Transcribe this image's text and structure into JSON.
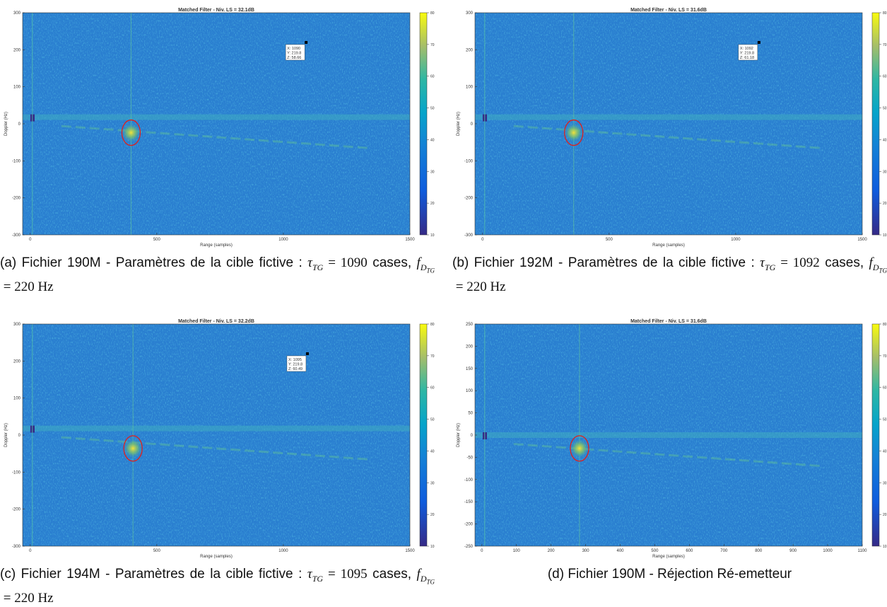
{
  "chart_data": [
    {
      "type": "heatmap",
      "title": "Matched Filter - Niv. LS = 32.1dB",
      "xlabel": "Range (samples)",
      "ylabel": "Doppler (Hz)",
      "xlim": [
        -30,
        1500
      ],
      "ylim": [
        -300,
        300
      ],
      "xticks": [
        0,
        500,
        1000,
        1500
      ],
      "yticks": [
        -300,
        -200,
        -100,
        0,
        100,
        200,
        300
      ],
      "clim": [
        10,
        80
      ],
      "cticks": [
        10,
        20,
        30,
        40,
        50,
        60,
        70,
        80
      ],
      "datatip": {
        "x": 1090,
        "y": 219.8,
        "z": 58.66,
        "labels": [
          "X: 1090",
          "Y: 219.8",
          "Z: 58.66"
        ]
      },
      "caption": [
        {
          "text": "(a) Fichier 190M - Paramètres de la cible fictive : "
        },
        {
          "text": "τ",
          "math": true,
          "sub": "TG"
        },
        {
          "text": " = ",
          "math": true
        },
        {
          "text": "1090",
          "math": true
        },
        {
          "text": " cases, "
        },
        {
          "text": "f",
          "math": true,
          "sub": "D",
          "subsub": "TG"
        },
        {
          "text": " = 220 Hz",
          "math": true
        }
      ]
    },
    {
      "type": "heatmap",
      "title": "Matched Filter - Niv. LS = 31.6dB",
      "xlabel": "Range (samples)",
      "ylabel": "Doppler (Hz)",
      "xlim": [
        -30,
        1500
      ],
      "ylim": [
        -300,
        300
      ],
      "xticks": [
        0,
        500,
        1000,
        1500
      ],
      "yticks": [
        -300,
        -200,
        -100,
        0,
        100,
        200,
        300
      ],
      "clim": [
        10,
        80
      ],
      "cticks": [
        10,
        20,
        30,
        40,
        50,
        60,
        70,
        80
      ],
      "datatip": {
        "x": 1092,
        "y": 219.8,
        "z": 61.18,
        "labels": [
          "X: 1092",
          "Y: 219.8",
          "Z: 61.18"
        ]
      },
      "caption": [
        {
          "text": "(b) Fichier 192M - Paramètres de la cible fictive : "
        },
        {
          "text": "τ",
          "math": true,
          "sub": "TG"
        },
        {
          "text": " = ",
          "math": true
        },
        {
          "text": "1092",
          "math": true
        },
        {
          "text": " cases, "
        },
        {
          "text": "f",
          "math": true,
          "sub": "D",
          "subsub": "TG"
        },
        {
          "text": " = 220 Hz",
          "math": true
        }
      ]
    },
    {
      "type": "heatmap",
      "title": "Matched Filter - Niv. LS = 32.2dB",
      "xlabel": "Range (samples)",
      "ylabel": "Doppler (Hz)",
      "xlim": [
        -30,
        1500
      ],
      "ylim": [
        -300,
        300
      ],
      "xticks": [
        0,
        500,
        1000,
        1500
      ],
      "yticks": [
        -300,
        -200,
        -100,
        0,
        100,
        200,
        300
      ],
      "clim": [
        10,
        80
      ],
      "cticks": [
        10,
        20,
        30,
        40,
        50,
        60,
        70,
        80
      ],
      "datatip": {
        "x": 1095,
        "y": 219.8,
        "z": 60.49,
        "labels": [
          "X: 1095",
          "Y: 219.8",
          "Z: 60.49"
        ]
      },
      "caption": [
        {
          "text": "(c) Fichier 194M - Paramètres de la cible fictive : "
        },
        {
          "text": "τ",
          "math": true,
          "sub": "TG"
        },
        {
          "text": " = ",
          "math": true
        },
        {
          "text": "1095",
          "math": true
        },
        {
          "text": " cases, "
        },
        {
          "text": "f",
          "math": true,
          "sub": "D",
          "subsub": "TG"
        },
        {
          "text": " = 220 Hz",
          "math": true
        }
      ]
    },
    {
      "type": "heatmap",
      "title": "Matched Filter - Niv. LS = 31.6dB",
      "xlabel": "Range (samples)",
      "ylabel": "Doppler (Hz)",
      "xlim": [
        -20,
        1100
      ],
      "ylim": [
        -250,
        250
      ],
      "xticks": [
        0,
        100,
        200,
        300,
        400,
        500,
        600,
        700,
        800,
        900,
        1000,
        1100
      ],
      "yticks": [
        -250,
        -200,
        -150,
        -100,
        -50,
        0,
        50,
        100,
        150,
        200,
        250
      ],
      "clim": [
        10,
        80
      ],
      "cticks": [
        10,
        20,
        30,
        40,
        50,
        60,
        70,
        80
      ],
      "caption": [
        {
          "text": "(d) Fichier 190M - Réjection Ré-emetteur"
        }
      ]
    }
  ]
}
